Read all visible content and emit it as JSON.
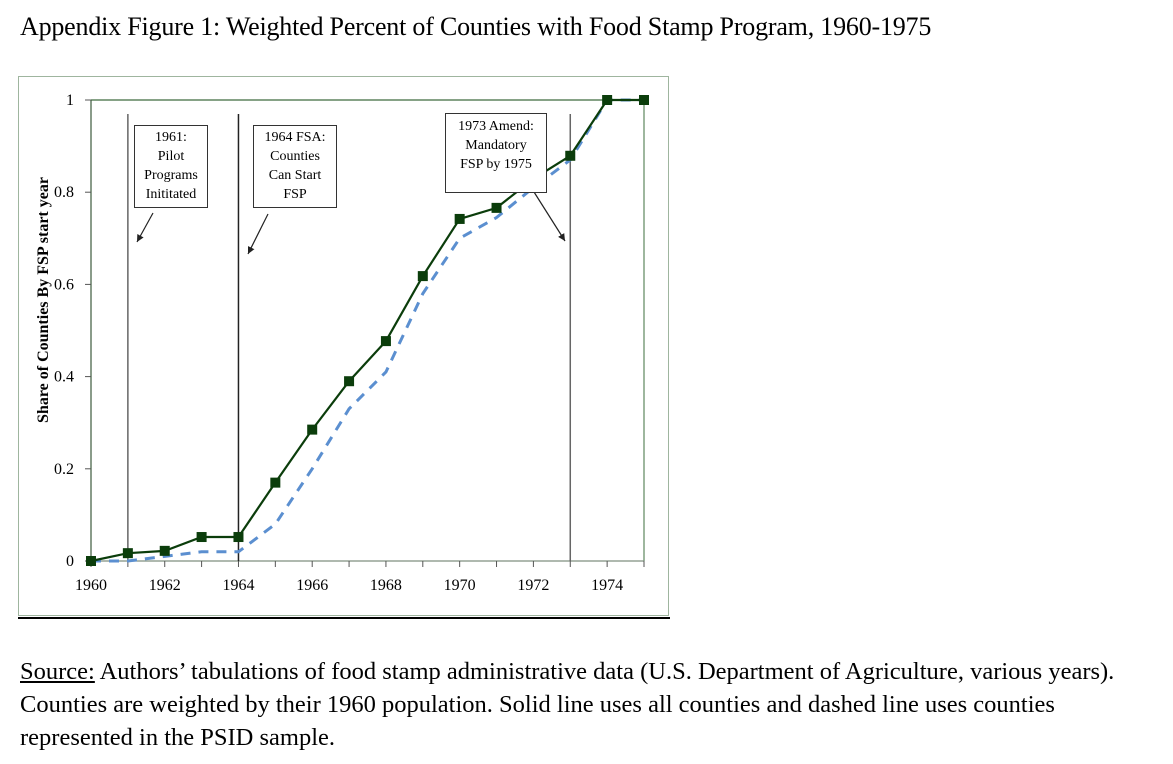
{
  "figure": {
    "title": "Appendix Figure 1: Weighted Percent of Counties with Food Stamp Program, 1960-1975"
  },
  "caption": {
    "source_label": "Source:",
    "text": " Authors’ tabulations of food stamp administrative data (U.S. Department of Agriculture, various years). Counties are weighted by their 1960 population. Solid line uses all counties and dashed line uses counties represented in the PSID sample."
  },
  "annotations": [
    {
      "id": "pilot",
      "lines": [
        "1961:",
        "Pilot",
        "Programs",
        "Inititated"
      ],
      "year": 1961
    },
    {
      "id": "fsa",
      "lines": [
        "1964 FSA:",
        "Counties",
        "Can Start",
        "FSP"
      ],
      "year": 1964
    },
    {
      "id": "amend",
      "lines": [
        "1973 Amend:",
        "Mandatory",
        "FSP by 1975"
      ],
      "year": 1973
    }
  ],
  "chart_data": {
    "type": "line",
    "title": "",
    "xlabel": "",
    "ylabel": "Share of Counties By FSP start year",
    "x": [
      1960,
      1961,
      1962,
      1963,
      1964,
      1965,
      1966,
      1967,
      1968,
      1969,
      1970,
      1971,
      1972,
      1973,
      1974,
      1975
    ],
    "xlim": [
      1960,
      1975
    ],
    "ylim": [
      0,
      1
    ],
    "x_ticks": [
      1960,
      1962,
      1964,
      1966,
      1968,
      1970,
      1972,
      1974
    ],
    "x_tick_labels": [
      "1960",
      "1962",
      "1964",
      "1966",
      "1968",
      "1970",
      "1972",
      "1974"
    ],
    "y_ticks": [
      0,
      0.2,
      0.4,
      0.6,
      0.8,
      1
    ],
    "y_tick_labels": [
      "0",
      "0.2",
      "0.4",
      "0.6",
      "0.8",
      "1"
    ],
    "grid": false,
    "legend": "none",
    "vertical_reference_lines": [
      1961,
      1964,
      1973
    ],
    "series": [
      {
        "name": "All counties",
        "style": "solid",
        "marker": "square",
        "color": "#0b3d0b",
        "values": [
          0.0,
          0.017,
          0.022,
          0.052,
          0.052,
          0.17,
          0.285,
          0.39,
          0.477,
          0.618,
          0.742,
          0.766,
          0.829,
          0.879,
          1.0,
          1.0
        ]
      },
      {
        "name": "PSID sample counties",
        "style": "dashed",
        "marker": "none",
        "color": "#5b8fd0",
        "values": [
          0.0,
          0.0,
          0.01,
          0.02,
          0.02,
          0.08,
          0.2,
          0.33,
          0.41,
          0.58,
          0.7,
          0.745,
          0.81,
          0.87,
          1.0,
          1.0
        ]
      }
    ]
  }
}
